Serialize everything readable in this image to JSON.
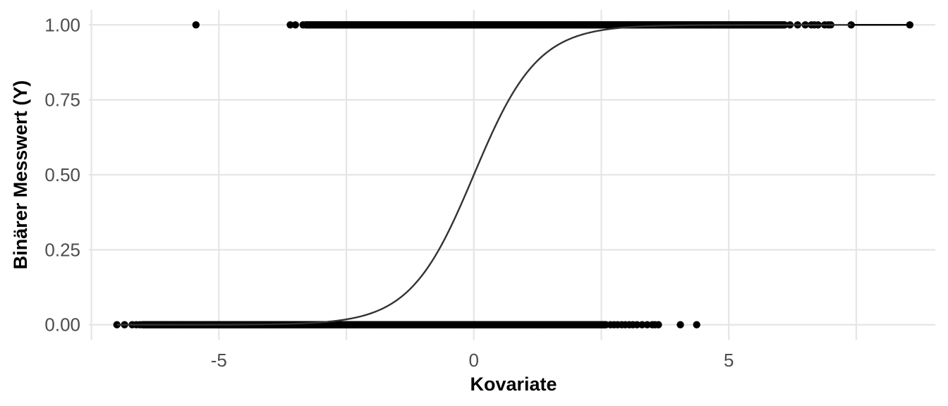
{
  "chart_data": {
    "type": "scatter",
    "title": "",
    "xlabel": "Kovariate",
    "ylabel": "Binärer Messwert (Y)",
    "xlim": [
      -7.55,
      9.05
    ],
    "ylim": [
      -0.05,
      1.05
    ],
    "x_ticks": [
      -5,
      0,
      5
    ],
    "x_tick_labels": [
      "-5",
      "0",
      "5"
    ],
    "y_ticks": [
      0,
      0.25,
      0.5,
      0.75,
      1
    ],
    "y_tick_labels": [
      "0.00",
      "0.25",
      "0.50",
      "0.75",
      "1.00"
    ],
    "grid": true,
    "legend": "none",
    "colors": {
      "points": "#000000",
      "curve": "#333333",
      "grid": "#e5e5e5"
    },
    "points_y0": {
      "x_dense_range": [
        -6.5,
        2.6
      ],
      "outliers_x": [
        -7.0,
        -6.85,
        -6.7,
        -6.62,
        -6.55,
        2.68,
        2.75,
        2.82,
        2.9,
        2.97,
        3.05,
        3.12,
        3.2,
        3.3,
        3.4,
        3.5,
        3.55,
        3.62,
        4.05,
        4.37
      ]
    },
    "points_y1": {
      "x_dense_range": [
        -3.3,
        6.1
      ],
      "outliers_x": [
        -5.45,
        -3.6,
        -3.5,
        -3.35,
        6.2,
        6.35,
        6.5,
        6.62,
        6.68,
        6.75,
        6.88,
        6.95,
        7.0,
        7.4,
        8.55
      ]
    },
    "curve": {
      "type": "logistic",
      "intercept": 0,
      "slope": 1.6,
      "x_range": [
        -7.0,
        8.55
      ],
      "tail_segment": [
        7.4,
        8.55
      ]
    }
  }
}
